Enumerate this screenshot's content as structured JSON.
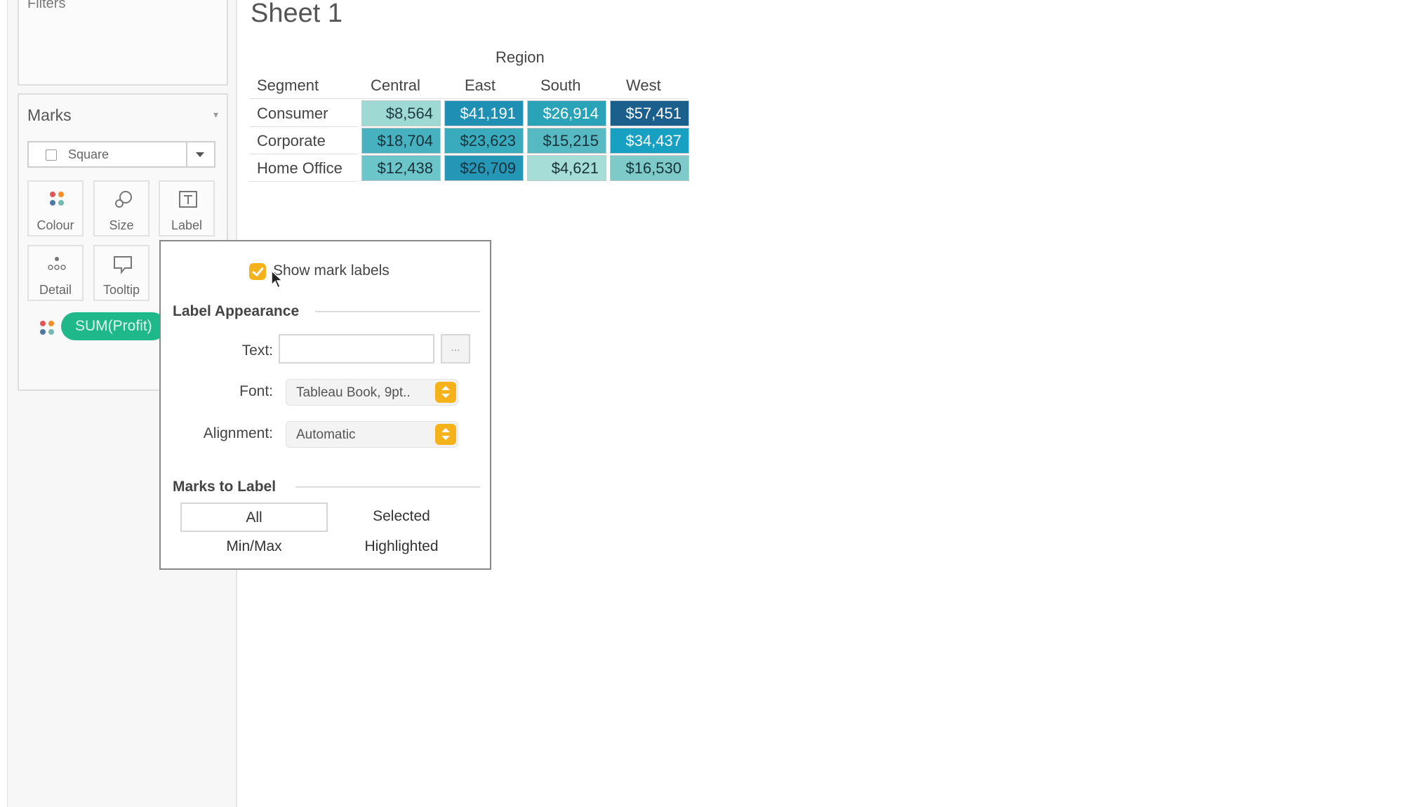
{
  "filters": {
    "title": "Filters"
  },
  "marks": {
    "title": "Marks",
    "mark_type": "Square",
    "properties": [
      {
        "label": "Colour",
        "icon": "colour-dots-icon"
      },
      {
        "label": "Size",
        "icon": "size-shapes-icon"
      },
      {
        "label": "Label",
        "icon": "label-text-icon"
      },
      {
        "label": "Detail",
        "icon": "detail-dots-icon"
      },
      {
        "label": "Tooltip",
        "icon": "tooltip-bubble-icon"
      }
    ],
    "pill": {
      "label": "SUM(Profit)",
      "color": "#1fb88a"
    }
  },
  "sheet": {
    "title": "Sheet 1"
  },
  "crosstab": {
    "column_group": "Region",
    "row_header": "Segment",
    "columns": [
      "Central",
      "East",
      "South",
      "West"
    ],
    "rows": [
      {
        "label": "Consumer",
        "cells": [
          "$8,564",
          "$41,191",
          "$26,914",
          "$57,451"
        ]
      },
      {
        "label": "Corporate",
        "cells": [
          "$18,704",
          "$23,623",
          "$15,215",
          "$34,437"
        ]
      },
      {
        "label": "Home Office",
        "cells": [
          "$12,438",
          "$26,709",
          "$4,621",
          "$16,530"
        ]
      }
    ],
    "cell_colors": [
      [
        "#9fd9d3",
        "#1f90b3",
        "#2aa3b8",
        "#1b5f8c"
      ],
      [
        "#47b1bf",
        "#3aaabd",
        "#57b9c1",
        "#18a0c2"
      ],
      [
        "#6cc5c8",
        "#2596b5",
        "#a6ddd6",
        "#7dcac9"
      ]
    ],
    "text_colors": [
      [
        "#1d3b40",
        "#ffffff",
        "#ffffff",
        "#ffffff"
      ],
      [
        "#17323a",
        "#17323a",
        "#17323a",
        "#ffffff"
      ],
      [
        "#17323a",
        "#17323a",
        "#17323a",
        "#17323a"
      ]
    ]
  },
  "label_popup": {
    "show_mark_labels": "Show mark labels",
    "show_mark_labels_checked": true,
    "label_appearance": "Label Appearance",
    "text_label": "Text:",
    "text_value": "",
    "ellipsis": "...",
    "font_label": "Font:",
    "font_value": "Tableau Book, 9pt..",
    "alignment_label": "Alignment:",
    "alignment_value": "Automatic",
    "marks_to_label": "Marks to Label",
    "options": [
      "All",
      "Selected",
      "Min/Max",
      "Highlighted"
    ],
    "selected_option": "All",
    "accent_color": "#f6b21a"
  }
}
